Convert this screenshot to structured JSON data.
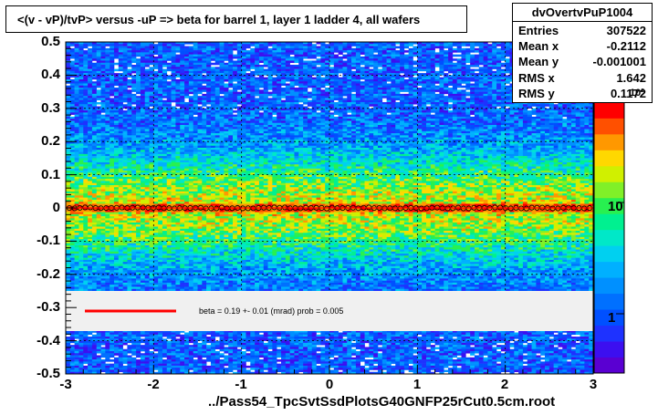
{
  "chart_data": {
    "type": "heatmap",
    "title": "<(v - vP)/tvP> versus  -uP => beta for barrel 1, layer 1 ladder 4, all wafers",
    "xlabel": "../Pass54_TpcSvtSsdPlotsG40GNFP25rCut0.5cm.root",
    "ylabel": "",
    "xlim": [
      -3,
      3
    ],
    "ylim": [
      -0.5,
      0.5
    ],
    "x_ticks": [
      "-3",
      "-2",
      "-1",
      "0",
      "1",
      "2",
      "3"
    ],
    "y_ticks": [
      "-0.5",
      "-0.4",
      "-0.3",
      "-0.2",
      "-0.1",
      "0",
      "0.1",
      "0.2",
      "0.3",
      "0.4",
      "0.5"
    ],
    "z_scale": "log",
    "z_ticks": [
      "1",
      "10",
      "10²"
    ],
    "grid": true,
    "profile": {
      "y_value": 0.0,
      "marker": "open-circle",
      "color": "#000000"
    },
    "fit": {
      "color": "#ff0000",
      "y_value": 0.0,
      "legend_text": "beta =    0.19 +-  0.01 (mrad) prob = 0.005"
    },
    "stats": {
      "name": "dvOvertvPuP1004",
      "rows": [
        {
          "key": "Entries",
          "value": "307522"
        },
        {
          "key": "Mean x",
          "value": "-0.2112"
        },
        {
          "key": "Mean y",
          "value": "-0.001001"
        },
        {
          "key": "RMS x",
          "value": "1.642"
        },
        {
          "key": "RMS y",
          "value": "0.1172"
        }
      ]
    }
  }
}
